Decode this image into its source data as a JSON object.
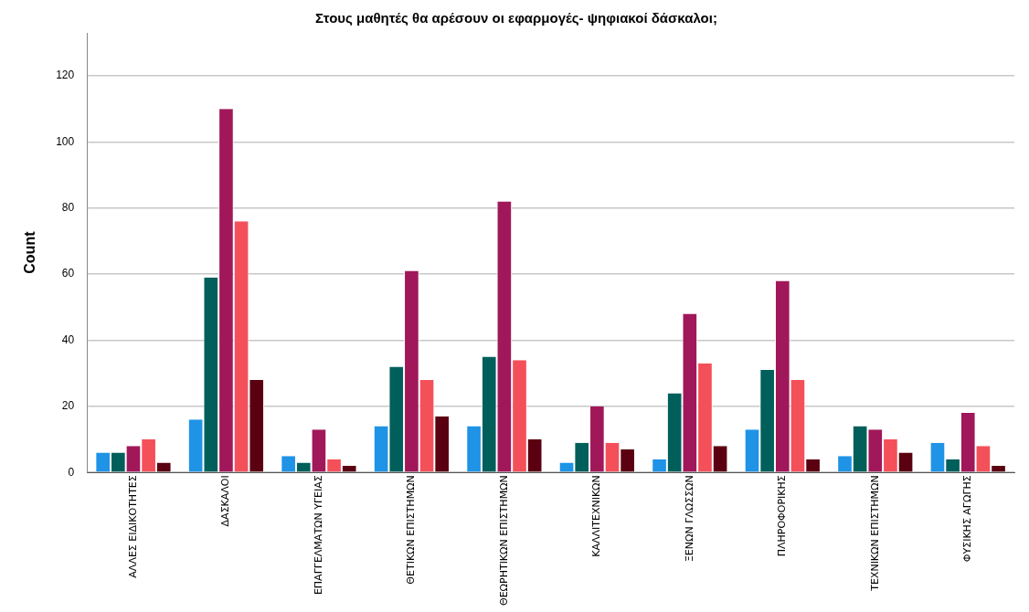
{
  "chart_data": {
    "type": "bar",
    "title": "Στους μαθητές θα αρέσουν οι εφαρμογές- ψηφιακοί δάσκαλοι;",
    "ylabel": "Count",
    "categories": [
      "ΑΛΛΕΣ ΕΙΔΙΚΟΤΗΤΕΣ",
      "ΔΑΣΚΑΛΟΙ",
      "ΕΠΑΓΓΕΛΜΑΤΩΝ ΥΓΕΙΑΣ",
      "ΘΕΤΙΚΩΝ ΕΠΙΣΤΗΜΩΝ",
      "ΘΕΩΡΗΤΙΚΩΝ ΕΠΙΣΤΗΜΩΝ",
      "ΚΑΛΛΙΤΕΧΝΙΚΩΝ",
      "ΞΕΝΩΝ ΓΛΩΣΣΩΝ",
      "ΠΛΗΡΟΦΟΡΙΚΗΣ",
      "ΤΕΧΝΙΚΩΝ ΕΠΙΣΤΗΜΩΝ",
      "ΦΥΣΙΚΗΣ ΑΓΩΓΗΣ"
    ],
    "series": [
      {
        "color": "#1f93e6",
        "values": [
          6,
          16,
          5,
          14,
          14,
          3,
          4,
          13,
          5,
          9
        ]
      },
      {
        "color": "#005f5b",
        "values": [
          6,
          59,
          3,
          32,
          35,
          9,
          24,
          31,
          14,
          4
        ]
      },
      {
        "color": "#a0185a",
        "values": [
          8,
          110,
          13,
          61,
          82,
          20,
          48,
          58,
          13,
          18
        ]
      },
      {
        "color": "#f4505a",
        "values": [
          10,
          76,
          4,
          28,
          34,
          9,
          33,
          28,
          10,
          8
        ]
      },
      {
        "color": "#5a0010",
        "values": [
          3,
          28,
          2,
          17,
          10,
          7,
          8,
          4,
          6,
          2
        ]
      }
    ],
    "ylim": [
      0,
      133
    ],
    "yticks": [
      0,
      20,
      40,
      60,
      80,
      100,
      120
    ],
    "grid": "y",
    "legend": false
  }
}
